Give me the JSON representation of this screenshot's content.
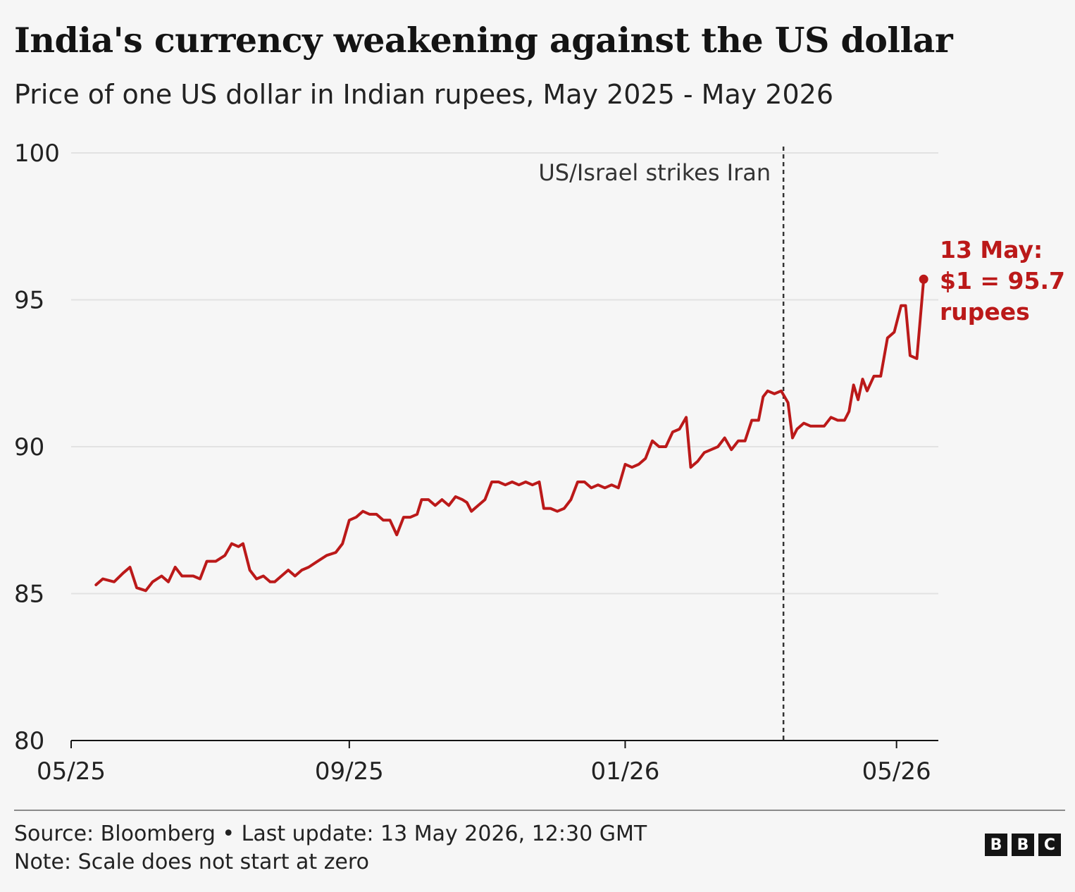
{
  "title": "India's currency weakening against the US dollar",
  "subtitle": "Price of one US dollar in Indian rupees, May 2025 - May 2026",
  "footer": {
    "source": "Source: Bloomberg • Last update: 13 May 2026, 12:30 GMT",
    "note": "Note: Scale does not start at zero"
  },
  "logo": {
    "letters": [
      "B",
      "B",
      "C"
    ]
  },
  "colors": {
    "line": "#bb1919",
    "text": "#141414",
    "grid": "#e2e2e2",
    "background": "#f6f6f6"
  },
  "chart_data": {
    "type": "line",
    "title": "India's currency weakening against the US dollar",
    "ylim": [
      80,
      100
    ],
    "yticks": [
      80,
      85,
      90,
      95,
      100
    ],
    "xticks": [
      "05/25",
      "09/25",
      "01/26",
      "05/26"
    ],
    "xlim": [
      "2025-05-01",
      "2026-05-20"
    ],
    "grid": true,
    "series": [
      {
        "color": "#bb1919",
        "points": [
          [
            "2025-05-12",
            85.3
          ],
          [
            "2025-05-15",
            85.5
          ],
          [
            "2025-05-20",
            85.4
          ],
          [
            "2025-05-24",
            85.7
          ],
          [
            "2025-05-27",
            85.9
          ],
          [
            "2025-05-30",
            85.2
          ],
          [
            "2025-06-03",
            85.1
          ],
          [
            "2025-06-06",
            85.4
          ],
          [
            "2025-06-10",
            85.6
          ],
          [
            "2025-06-13",
            85.4
          ],
          [
            "2025-06-16",
            85.9
          ],
          [
            "2025-06-19",
            85.6
          ],
          [
            "2025-06-24",
            85.6
          ],
          [
            "2025-06-27",
            85.5
          ],
          [
            "2025-06-30",
            86.1
          ],
          [
            "2025-07-04",
            86.1
          ],
          [
            "2025-07-08",
            86.3
          ],
          [
            "2025-07-11",
            86.7
          ],
          [
            "2025-07-14",
            86.6
          ],
          [
            "2025-07-16",
            86.7
          ],
          [
            "2025-07-19",
            85.8
          ],
          [
            "2025-07-22",
            85.5
          ],
          [
            "2025-07-25",
            85.6
          ],
          [
            "2025-07-28",
            85.4
          ],
          [
            "2025-07-30",
            85.4
          ],
          [
            "2025-08-02",
            85.6
          ],
          [
            "2025-08-05",
            85.8
          ],
          [
            "2025-08-08",
            85.6
          ],
          [
            "2025-08-11",
            85.8
          ],
          [
            "2025-08-14",
            85.9
          ],
          [
            "2025-08-18",
            86.1
          ],
          [
            "2025-08-22",
            86.3
          ],
          [
            "2025-08-26",
            86.4
          ],
          [
            "2025-08-29",
            86.7
          ],
          [
            "2025-09-01",
            87.5
          ],
          [
            "2025-09-04",
            87.6
          ],
          [
            "2025-09-07",
            87.8
          ],
          [
            "2025-09-10",
            87.7
          ],
          [
            "2025-09-13",
            87.7
          ],
          [
            "2025-09-16",
            87.5
          ],
          [
            "2025-09-19",
            87.5
          ],
          [
            "2025-09-22",
            87.0
          ],
          [
            "2025-09-25",
            87.6
          ],
          [
            "2025-09-28",
            87.6
          ],
          [
            "2025-10-01",
            87.7
          ],
          [
            "2025-10-03",
            88.2
          ],
          [
            "2025-10-06",
            88.2
          ],
          [
            "2025-10-09",
            88.0
          ],
          [
            "2025-10-12",
            88.2
          ],
          [
            "2025-10-15",
            88.0
          ],
          [
            "2025-10-18",
            88.3
          ],
          [
            "2025-10-21",
            88.2
          ],
          [
            "2025-10-23",
            88.1
          ],
          [
            "2025-10-25",
            87.8
          ],
          [
            "2025-10-28",
            88.0
          ],
          [
            "2025-10-31",
            88.2
          ],
          [
            "2025-11-03",
            88.8
          ],
          [
            "2025-11-06",
            88.8
          ],
          [
            "2025-11-09",
            88.7
          ],
          [
            "2025-11-12",
            88.8
          ],
          [
            "2025-11-15",
            88.7
          ],
          [
            "2025-11-18",
            88.8
          ],
          [
            "2025-11-21",
            88.7
          ],
          [
            "2025-11-24",
            88.8
          ],
          [
            "2025-11-26",
            87.9
          ],
          [
            "2025-11-29",
            87.9
          ],
          [
            "2025-12-02",
            87.8
          ],
          [
            "2025-12-05",
            87.9
          ],
          [
            "2025-12-08",
            88.2
          ],
          [
            "2025-12-11",
            88.8
          ],
          [
            "2025-12-14",
            88.8
          ],
          [
            "2025-12-17",
            88.6
          ],
          [
            "2025-12-20",
            88.7
          ],
          [
            "2025-12-23",
            88.6
          ],
          [
            "2025-12-26",
            88.7
          ],
          [
            "2025-12-29",
            88.6
          ],
          [
            "2026-01-01",
            89.4
          ],
          [
            "2026-01-04",
            89.3
          ],
          [
            "2026-01-07",
            89.4
          ],
          [
            "2026-01-10",
            89.6
          ],
          [
            "2026-01-13",
            90.2
          ],
          [
            "2026-01-16",
            90.0
          ],
          [
            "2026-01-19",
            90.0
          ],
          [
            "2026-01-22",
            90.5
          ],
          [
            "2026-01-25",
            90.6
          ],
          [
            "2026-01-28",
            91.0
          ],
          [
            "2026-01-30",
            89.3
          ],
          [
            "2026-02-02",
            89.5
          ],
          [
            "2026-02-05",
            89.8
          ],
          [
            "2026-02-08",
            89.9
          ],
          [
            "2026-02-11",
            90.0
          ],
          [
            "2026-02-14",
            90.3
          ],
          [
            "2026-02-17",
            89.9
          ],
          [
            "2026-02-20",
            90.2
          ],
          [
            "2026-02-23",
            90.2
          ],
          [
            "2026-02-26",
            90.9
          ],
          [
            "2026-03-01",
            90.9
          ],
          [
            "2026-03-03",
            91.7
          ],
          [
            "2026-03-05",
            91.9
          ],
          [
            "2026-03-08",
            91.8
          ],
          [
            "2026-03-11",
            91.9
          ],
          [
            "2026-03-14",
            91.5
          ],
          [
            "2026-03-16",
            90.3
          ],
          [
            "2026-03-18",
            90.6
          ],
          [
            "2026-03-21",
            90.8
          ],
          [
            "2026-03-24",
            90.7
          ],
          [
            "2026-03-27",
            90.7
          ],
          [
            "2026-03-30",
            90.7
          ],
          [
            "2026-04-02",
            91.0
          ],
          [
            "2026-04-05",
            90.9
          ],
          [
            "2026-04-08",
            90.9
          ],
          [
            "2026-04-10",
            91.2
          ],
          [
            "2026-04-12",
            92.1
          ],
          [
            "2026-04-14",
            91.6
          ],
          [
            "2026-04-16",
            92.3
          ],
          [
            "2026-04-18",
            91.9
          ],
          [
            "2026-04-21",
            92.4
          ],
          [
            "2026-04-24",
            92.4
          ],
          [
            "2026-04-27",
            93.7
          ],
          [
            "2026-04-30",
            93.9
          ],
          [
            "2026-05-03",
            94.8
          ],
          [
            "2026-05-05",
            94.8
          ],
          [
            "2026-05-07",
            93.1
          ],
          [
            "2026-05-10",
            93.0
          ],
          [
            "2026-05-13",
            95.7
          ]
        ]
      }
    ],
    "annotations": [
      {
        "type": "vline",
        "date": "2026-03-12",
        "label": "US/Israel strikes Iran"
      },
      {
        "type": "end-label",
        "date": "2026-05-13",
        "value": 95.7,
        "lines": [
          "13 May:",
          "$1 = 95.7",
          "rupees"
        ]
      }
    ]
  }
}
